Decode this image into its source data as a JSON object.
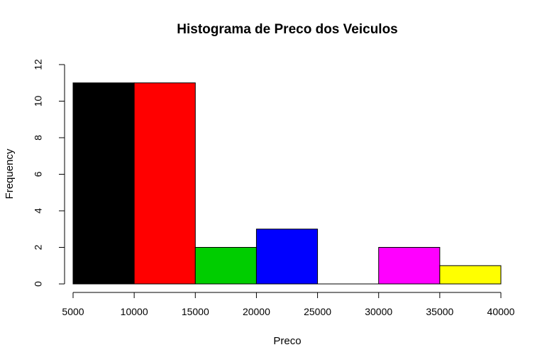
{
  "chart_data": {
    "type": "bar",
    "title": "Histograma de Preco dos Veiculos",
    "xlabel": "Preco",
    "ylabel": "Frequency",
    "bins": [
      {
        "from": 5000,
        "to": 10000,
        "count": 11,
        "color": "#000000"
      },
      {
        "from": 10000,
        "to": 15000,
        "count": 11,
        "color": "#FF0000"
      },
      {
        "from": 15000,
        "to": 20000,
        "count": 2,
        "color": "#00CD00"
      },
      {
        "from": 20000,
        "to": 25000,
        "count": 3,
        "color": "#0000FF"
      },
      {
        "from": 25000,
        "to": 30000,
        "count": 0,
        "color": "#00FFFF"
      },
      {
        "from": 30000,
        "to": 35000,
        "count": 2,
        "color": "#FF00FF"
      },
      {
        "from": 35000,
        "to": 40000,
        "count": 1,
        "color": "#FFFF00"
      }
    ],
    "xticks": [
      "5000",
      "10000",
      "15000",
      "20000",
      "25000",
      "30000",
      "35000",
      "40000"
    ],
    "yticks": [
      "0",
      "2",
      "4",
      "6",
      "8",
      "10",
      "12"
    ],
    "xlim": [
      5000,
      40000
    ],
    "ylim": [
      0,
      12
    ],
    "grid": false,
    "legend": "none"
  }
}
